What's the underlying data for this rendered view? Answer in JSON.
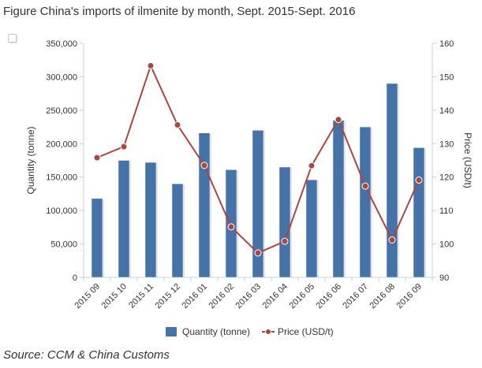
{
  "title": "Figure China's imports of ilmenite by month, Sept. 2015-Sept. 2016",
  "source": "Source: CCM & China Customs",
  "colors": {
    "bar": "#4572a7",
    "line": "#aa4643"
  },
  "chart_data": {
    "type": "bar",
    "categories": [
      "2015 09",
      "2015 10",
      "2015 11",
      "2015 12",
      "2016 01",
      "2016 02",
      "2016 03",
      "2016 04",
      "2016 05",
      "2016 06",
      "2016 07",
      "2016 08",
      "2016 09"
    ],
    "series": [
      {
        "name": "Quantity (tonne)",
        "type": "bar",
        "axis": "left",
        "values": [
          118000,
          175000,
          172000,
          140000,
          216000,
          161000,
          220000,
          165000,
          146000,
          235000,
          225000,
          290000,
          194000
        ]
      },
      {
        "name": "Price  (USD/t)",
        "type": "line",
        "axis": "right",
        "values": [
          125.8,
          129.1,
          153.3,
          135.6,
          123.5,
          105.1,
          97.3,
          100.8,
          123.4,
          137.2,
          117.3,
          101.2,
          119.1
        ]
      }
    ],
    "ylabel": "Quantity (tonne)",
    "y2label": "Price  (USD/t)",
    "ylim": [
      0,
      350000
    ],
    "y2lim": [
      90,
      160
    ],
    "yticks": [
      "0",
      "50,000",
      "100,000",
      "150,000",
      "200,000",
      "250,000",
      "300,000",
      "350,000"
    ],
    "y2ticks": [
      "90",
      "100",
      "110",
      "120",
      "130",
      "140",
      "150",
      "160"
    ],
    "legend_position": "bottom",
    "grid": false
  }
}
